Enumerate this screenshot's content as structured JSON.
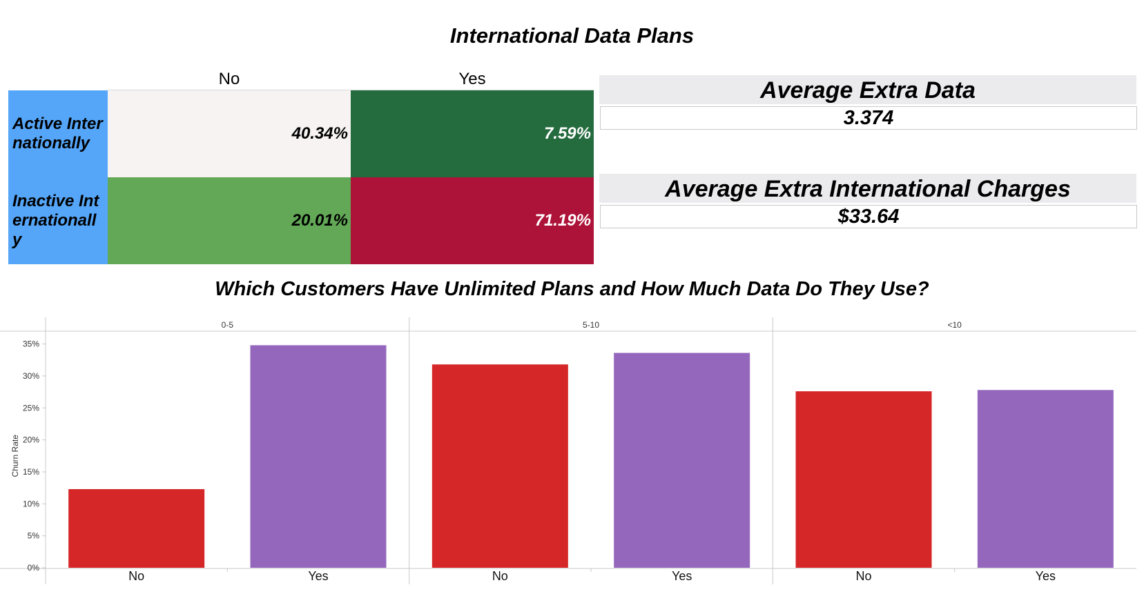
{
  "title": "International Data Plans",
  "heatmap": {
    "columns": [
      "No",
      "Yes"
    ],
    "rows": [
      {
        "label": "Active Internationally",
        "cells": [
          "40.34%",
          "7.59%"
        ]
      },
      {
        "label": "Inactive Internationally",
        "cells": [
          "20.01%",
          "71.19%"
        ]
      }
    ],
    "colors": [
      [
        "#f7f3f3",
        "#246b3e"
      ],
      [
        "#62a857",
        "#ad1339"
      ]
    ],
    "text_colors": [
      [
        "#000000",
        "#ffffff"
      ],
      [
        "#000000",
        "#ffffff"
      ]
    ],
    "row_header_color": "#55a6f9"
  },
  "kpis": [
    {
      "label": "Average Extra Data",
      "value": "3.374"
    },
    {
      "label": "Average Extra International Charges",
      "value": "$33.64"
    }
  ],
  "subtitle": "Which Customers Have Unlimited Plans and How Much Data Do They Use?",
  "chart_data": {
    "type": "bar",
    "panels": [
      "0-5",
      "5-10",
      "<10"
    ],
    "categories": [
      "No",
      "Yes"
    ],
    "values": [
      [
        12.3,
        34.8
      ],
      [
        31.8,
        33.6
      ],
      [
        27.6,
        27.8
      ]
    ],
    "colors": {
      "No": "#d62728",
      "Yes": "#9467bd"
    },
    "ylabel": "Churn Rate",
    "yticks": [
      "0%",
      "5%",
      "10%",
      "15%",
      "20%",
      "25%",
      "30%",
      "35%"
    ],
    "ylim": [
      0,
      35.6
    ],
    "grid": false
  }
}
